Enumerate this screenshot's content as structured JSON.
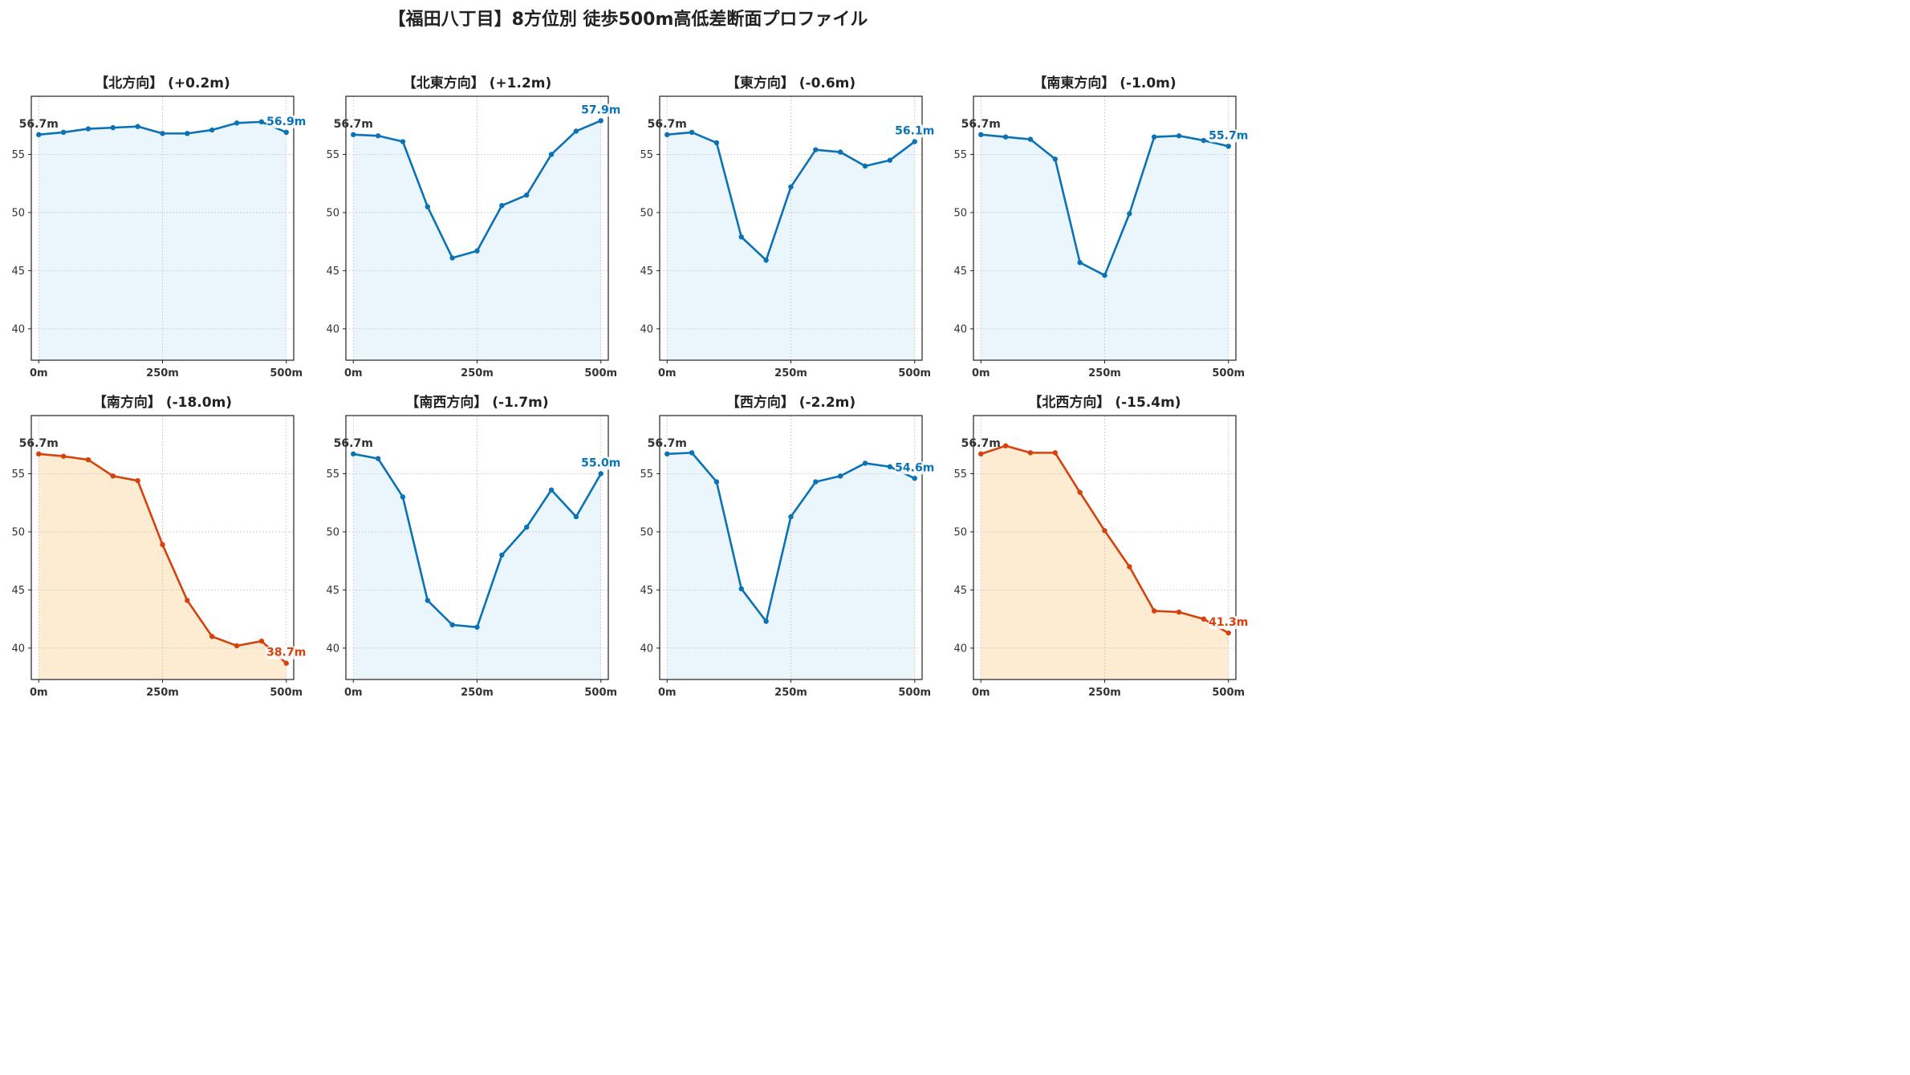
{
  "title": "【福田八丁目】8方位別 徒歩500m高低差断面プロファイル",
  "colors": {
    "rise_line": "#0a72b5",
    "rise_fill": "#eaf6fc",
    "fall_line": "#d4420e",
    "fall_fill": "#fdebd2",
    "axis": "#222222",
    "grid": "#c8c8c8",
    "tick_label": "#333333",
    "start_label": "#333333"
  },
  "chart_data": [
    {
      "type": "area",
      "title": "【北方向】 (+0.2m)",
      "style": "rise",
      "x": [
        0,
        50,
        100,
        150,
        200,
        250,
        300,
        350,
        400,
        450,
        500
      ],
      "y": [
        56.7,
        56.9,
        57.2,
        57.3,
        57.4,
        56.8,
        56.8,
        57.1,
        57.7,
        57.8,
        56.9
      ],
      "start_label": "56.7m",
      "end_label": "56.9m",
      "xticks": [
        0,
        250,
        500
      ],
      "xtick_labels": [
        "0m",
        "250m",
        "500m"
      ],
      "yticks": [
        40,
        45,
        50,
        55
      ],
      "ytick_labels": [
        "40",
        "45",
        "50",
        "55"
      ],
      "xlim": [
        -15,
        515
      ],
      "ylim": [
        37.3,
        60.0
      ],
      "grid": true
    },
    {
      "type": "area",
      "title": "【北東方向】 (+1.2m)",
      "style": "rise",
      "x": [
        0,
        50,
        100,
        150,
        200,
        250,
        300,
        350,
        400,
        450,
        500
      ],
      "y": [
        56.7,
        56.6,
        56.1,
        50.5,
        46.1,
        46.7,
        50.6,
        51.5,
        55.0,
        57.0,
        57.9
      ],
      "start_label": "56.7m",
      "end_label": "57.9m",
      "xticks": [
        0,
        250,
        500
      ],
      "xtick_labels": [
        "0m",
        "250m",
        "500m"
      ],
      "yticks": [
        40,
        45,
        50,
        55
      ],
      "ytick_labels": [
        "40",
        "45",
        "50",
        "55"
      ],
      "xlim": [
        -15,
        515
      ],
      "ylim": [
        37.3,
        60.0
      ],
      "grid": true
    },
    {
      "type": "area",
      "title": "【東方向】 (-0.6m)",
      "style": "rise",
      "x": [
        0,
        50,
        100,
        150,
        200,
        250,
        300,
        350,
        400,
        450,
        500
      ],
      "y": [
        56.7,
        56.9,
        56.0,
        47.9,
        45.9,
        52.2,
        55.4,
        55.2,
        54.0,
        54.5,
        56.1
      ],
      "start_label": "56.7m",
      "end_label": "56.1m",
      "xticks": [
        0,
        250,
        500
      ],
      "xtick_labels": [
        "0m",
        "250m",
        "500m"
      ],
      "yticks": [
        40,
        45,
        50,
        55
      ],
      "ytick_labels": [
        "40",
        "45",
        "50",
        "55"
      ],
      "xlim": [
        -15,
        515
      ],
      "ylim": [
        37.3,
        60.0
      ],
      "grid": true
    },
    {
      "type": "area",
      "title": "【南東方向】 (-1.0m)",
      "style": "rise",
      "x": [
        0,
        50,
        100,
        150,
        200,
        250,
        300,
        350,
        400,
        450,
        500
      ],
      "y": [
        56.7,
        56.5,
        56.3,
        54.6,
        45.7,
        44.6,
        49.9,
        56.5,
        56.6,
        56.2,
        55.7
      ],
      "start_label": "56.7m",
      "end_label": "55.7m",
      "xticks": [
        0,
        250,
        500
      ],
      "xtick_labels": [
        "0m",
        "250m",
        "500m"
      ],
      "yticks": [
        40,
        45,
        50,
        55
      ],
      "ytick_labels": [
        "40",
        "45",
        "50",
        "55"
      ],
      "xlim": [
        -15,
        515
      ],
      "ylim": [
        37.3,
        60.0
      ],
      "grid": true
    },
    {
      "type": "area",
      "title": "【南方向】 (-18.0m)",
      "style": "fall",
      "x": [
        0,
        50,
        100,
        150,
        200,
        250,
        300,
        350,
        400,
        450,
        500
      ],
      "y": [
        56.7,
        56.5,
        56.2,
        54.8,
        54.4,
        48.9,
        44.1,
        41.0,
        40.2,
        40.6,
        38.7
      ],
      "start_label": "56.7m",
      "end_label": "38.7m",
      "xticks": [
        0,
        250,
        500
      ],
      "xtick_labels": [
        "0m",
        "250m",
        "500m"
      ],
      "yticks": [
        40,
        45,
        50,
        55
      ],
      "ytick_labels": [
        "40",
        "45",
        "50",
        "55"
      ],
      "xlim": [
        -15,
        515
      ],
      "ylim": [
        37.3,
        60.0
      ],
      "grid": true
    },
    {
      "type": "area",
      "title": "【南西方向】 (-1.7m)",
      "style": "rise",
      "x": [
        0,
        50,
        100,
        150,
        200,
        250,
        300,
        350,
        400,
        450,
        500
      ],
      "y": [
        56.7,
        56.3,
        53.0,
        44.1,
        42.0,
        41.8,
        48.0,
        50.4,
        53.6,
        51.3,
        55.0
      ],
      "start_label": "56.7m",
      "end_label": "55.0m",
      "xticks": [
        0,
        250,
        500
      ],
      "xtick_labels": [
        "0m",
        "250m",
        "500m"
      ],
      "yticks": [
        40,
        45,
        50,
        55
      ],
      "ytick_labels": [
        "40",
        "45",
        "50",
        "55"
      ],
      "xlim": [
        -15,
        515
      ],
      "ylim": [
        37.3,
        60.0
      ],
      "grid": true
    },
    {
      "type": "area",
      "title": "【西方向】 (-2.2m)",
      "style": "rise",
      "x": [
        0,
        50,
        100,
        150,
        200,
        250,
        300,
        350,
        400,
        450,
        500
      ],
      "y": [
        56.7,
        56.8,
        54.3,
        45.1,
        42.3,
        51.3,
        54.3,
        54.8,
        55.9,
        55.6,
        54.6
      ],
      "start_label": "56.7m",
      "end_label": "54.6m",
      "xticks": [
        0,
        250,
        500
      ],
      "xtick_labels": [
        "0m",
        "250m",
        "500m"
      ],
      "yticks": [
        40,
        45,
        50,
        55
      ],
      "ytick_labels": [
        "40",
        "45",
        "50",
        "55"
      ],
      "xlim": [
        -15,
        515
      ],
      "ylim": [
        37.3,
        60.0
      ],
      "grid": true
    },
    {
      "type": "area",
      "title": "【北西方向】 (-15.4m)",
      "style": "fall",
      "x": [
        0,
        50,
        100,
        150,
        200,
        250,
        300,
        350,
        400,
        450,
        500
      ],
      "y": [
        56.7,
        57.4,
        56.8,
        56.8,
        53.4,
        50.1,
        47.0,
        43.2,
        43.1,
        42.5,
        41.3
      ],
      "start_label": "56.7m",
      "end_label": "41.3m",
      "xticks": [
        0,
        250,
        500
      ],
      "xtick_labels": [
        "0m",
        "250m",
        "500m"
      ],
      "yticks": [
        40,
        45,
        50,
        55
      ],
      "ytick_labels": [
        "40",
        "45",
        "50",
        "55"
      ],
      "xlim": [
        -15,
        515
      ],
      "ylim": [
        37.3,
        60.0
      ],
      "grid": true
    }
  ]
}
